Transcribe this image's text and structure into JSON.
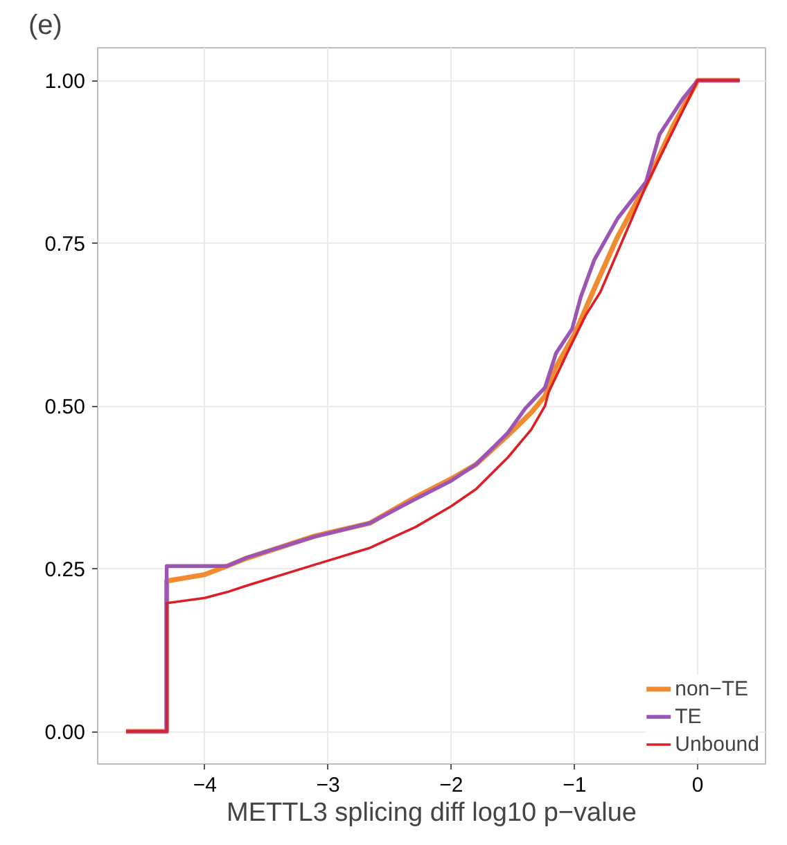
{
  "chart_data": {
    "type": "line",
    "xlabel": "METTL3 splicing diff log10 p−value",
    "annotations": [
      "(e)"
    ],
    "xlim": [
      -4.87,
      0.55
    ],
    "ylim": [
      -0.05,
      1.05
    ],
    "xticks": [
      {
        "value": -4,
        "label": "−4"
      },
      {
        "value": -3,
        "label": "−3"
      },
      {
        "value": -2,
        "label": "−2"
      },
      {
        "value": -1,
        "label": "−1"
      },
      0
    ],
    "yticks": [
      {
        "value": 0,
        "label": "0.00"
      },
      {
        "value": 0.25,
        "label": "0.25"
      },
      {
        "value": 0.5,
        "label": "0.50"
      },
      {
        "value": 0.75,
        "label": "0.75"
      },
      {
        "value": 1,
        "label": "1.00"
      }
    ],
    "grid": true,
    "legend": "bottom right",
    "series": [
      {
        "name": "non−TE",
        "color": "#f28a30",
        "x": [
          -4.64,
          -4.31,
          -4.31,
          -4.0,
          -3.82,
          -3.66,
          -3.11,
          -2.66,
          -2.29,
          -2.0,
          -1.8,
          -1.54,
          -1.35,
          -1.24,
          -1.15,
          -1.0,
          -0.84,
          -0.65,
          -0.42,
          -0.2,
          0,
          0.34
        ],
        "values": [
          0,
          0,
          0.231,
          0.241,
          0.254,
          0.266,
          0.3,
          0.32,
          0.36,
          0.388,
          0.41,
          0.455,
          0.49,
          0.515,
          0.56,
          0.61,
          0.68,
          0.76,
          0.84,
          0.93,
          1.0,
          1.0
        ]
      },
      {
        "name": "TE",
        "color": "#9b55b5",
        "x": [
          -4.64,
          -4.31,
          -4.31,
          -3.82,
          -3.66,
          -3.11,
          -2.66,
          -2.29,
          -2.0,
          -1.8,
          -1.54,
          -1.4,
          -1.24,
          -1.15,
          -1.02,
          -0.95,
          -0.84,
          -0.65,
          -0.42,
          -0.31,
          -0.12,
          0,
          0.34
        ],
        "values": [
          0,
          0,
          0.254,
          0.254,
          0.267,
          0.299,
          0.32,
          0.357,
          0.385,
          0.41,
          0.459,
          0.496,
          0.528,
          0.581,
          0.618,
          0.667,
          0.724,
          0.788,
          0.844,
          0.917,
          0.972,
          1.0,
          1.0
        ]
      },
      {
        "name": "Unbound",
        "color": "#dc1f26",
        "x": [
          -4.64,
          -4.31,
          -4.31,
          -4.0,
          -3.82,
          -3.66,
          -3.11,
          -2.66,
          -2.29,
          -2.0,
          -1.8,
          -1.54,
          -1.35,
          -1.24,
          -1.21,
          -1.06,
          -0.91,
          -0.79,
          -0.42,
          0,
          0.34
        ],
        "values": [
          0,
          0,
          0.197,
          0.205,
          0.214,
          0.224,
          0.256,
          0.282,
          0.314,
          0.346,
          0.372,
          0.421,
          0.464,
          0.5,
          0.521,
          0.581,
          0.639,
          0.675,
          0.838,
          1.0,
          1.0
        ]
      }
    ]
  }
}
